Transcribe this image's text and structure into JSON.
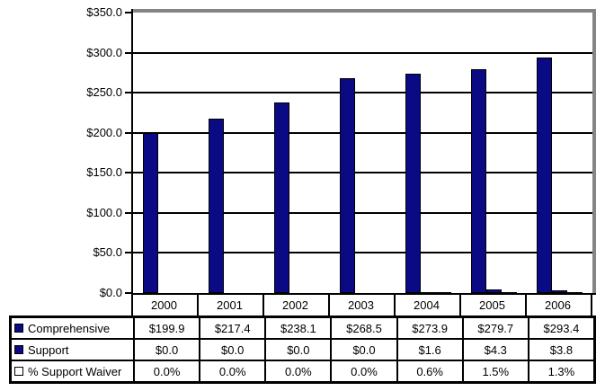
{
  "chart_data": {
    "type": "bar",
    "title": "",
    "xlabel": "",
    "ylabel": "",
    "categories": [
      "2000",
      "2001",
      "2002",
      "2003",
      "2004",
      "2005",
      "2006"
    ],
    "series": [
      {
        "name": "Comprehensive",
        "color": "#0a0a84",
        "values": [
          199.9,
          217.4,
          238.1,
          268.5,
          273.9,
          279.7,
          293.4
        ]
      },
      {
        "name": "Support",
        "color": "#0a0a84",
        "values": [
          0.0,
          0.0,
          0.0,
          0.0,
          1.6,
          4.3,
          3.8
        ]
      },
      {
        "name": "% Support Waiver",
        "color": "#ffffff",
        "values": [
          0.0,
          0.0,
          0.0,
          0.0,
          0.6,
          1.5,
          1.3
        ]
      }
    ],
    "ylim": [
      0,
      350
    ],
    "y_ticks": [
      {
        "value": 0,
        "label": "$0.0"
      },
      {
        "value": 50,
        "label": "$50.0"
      },
      {
        "value": 100,
        "label": "$100.0"
      },
      {
        "value": 150,
        "label": "$150.0"
      },
      {
        "value": 200,
        "label": "$200.0"
      },
      {
        "value": 250,
        "label": "$250.0"
      },
      {
        "value": 300,
        "label": "$300.0"
      },
      {
        "value": 350,
        "label": "$350.0"
      }
    ],
    "grid": true,
    "legend_position": "data-table-left",
    "colors": {
      "axis": "#000000",
      "gridline": "#000000",
      "plot_border_gray": "#858585",
      "bar_navy": "#0a0a84",
      "bar_white": "#ffffff"
    }
  },
  "data_table": {
    "rows": [
      {
        "label": "Comprehensive",
        "marker_color": "#0a0a84",
        "values": [
          "$199.9",
          "$217.4",
          "$238.1",
          "$268.5",
          "$273.9",
          "$279.7",
          "$293.4"
        ]
      },
      {
        "label": "Support",
        "marker_color": "#0a0a84",
        "values": [
          "$0.0",
          "$0.0",
          "$0.0",
          "$0.0",
          "$1.6",
          "$4.3",
          "$3.8"
        ]
      },
      {
        "label": "% Support Waiver",
        "marker_color": "#ffffff",
        "values": [
          "0.0%",
          "0.0%",
          "0.0%",
          "0.0%",
          "0.6%",
          "1.5%",
          "1.3%"
        ]
      }
    ]
  }
}
